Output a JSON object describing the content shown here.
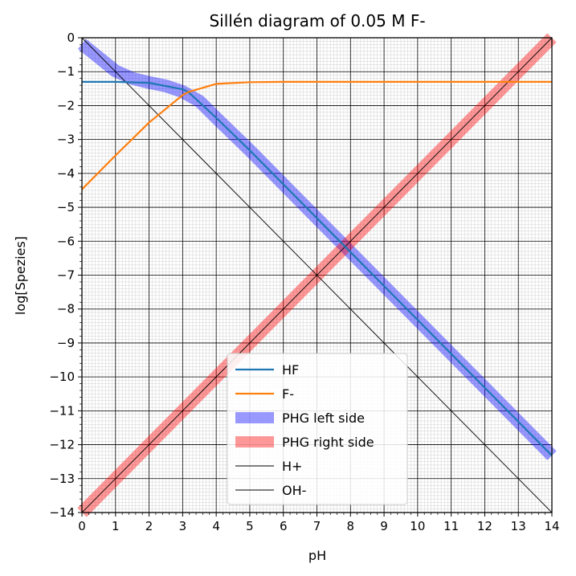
{
  "chart_data": {
    "type": "line",
    "title": "Sillén diagram of 0.05 M F-",
    "xlabel": "pH",
    "ylabel": "log[Spezies]",
    "xlim": [
      0,
      14
    ],
    "ylim": [
      -14,
      0
    ],
    "xticks": [
      "0",
      "1",
      "2",
      "3",
      "4",
      "5",
      "6",
      "7",
      "8",
      "9",
      "10",
      "11",
      "12",
      "13",
      "14"
    ],
    "yticks": [
      "0",
      "−1",
      "−2",
      "−3",
      "−4",
      "−5",
      "−6",
      "−7",
      "−8",
      "−9",
      "−10",
      "−11",
      "−12",
      "−13",
      "−14"
    ],
    "grid": "major and minor",
    "legend_position": "lower-center",
    "concentration_log": -1.301,
    "pKa": 3.17,
    "series": [
      {
        "name": "HF",
        "color": "#1f77b4",
        "style": "solid",
        "x": [
          0,
          1,
          2,
          3,
          3.17,
          4,
          5,
          6,
          7,
          8,
          9,
          10,
          11,
          12,
          13,
          14
        ],
        "y": [
          -1.3,
          -1.3,
          -1.33,
          -1.52,
          -1.6,
          -2.36,
          -3.32,
          -4.32,
          -5.32,
          -6.32,
          -7.32,
          -8.32,
          -9.32,
          -10.32,
          -11.32,
          -12.32
        ]
      },
      {
        "name": "F-",
        "color": "#ff7f0e",
        "style": "solid",
        "x": [
          0,
          1,
          2,
          3,
          3.17,
          4,
          5,
          6,
          7,
          8,
          9,
          10,
          11,
          12,
          13,
          14
        ],
        "y": [
          -4.47,
          -3.47,
          -2.5,
          -1.69,
          -1.6,
          -1.36,
          -1.31,
          -1.3,
          -1.3,
          -1.3,
          -1.3,
          -1.3,
          -1.3,
          -1.3,
          -1.3,
          -1.3
        ]
      },
      {
        "name": "PHG left side",
        "color": "#0000ff",
        "style": "band",
        "x": [
          0,
          0.5,
          1,
          1.5,
          2,
          2.5,
          3,
          3.5,
          4,
          5,
          6,
          7,
          8,
          9,
          10,
          11,
          12,
          13,
          14
        ],
        "y": [
          -0.18,
          -0.58,
          -0.98,
          -1.2,
          -1.32,
          -1.42,
          -1.59,
          -1.87,
          -2.36,
          -3.32,
          -4.32,
          -5.32,
          -6.32,
          -7.32,
          -8.32,
          -9.32,
          -10.32,
          -11.32,
          -12.32
        ]
      },
      {
        "name": "PHG right side",
        "color": "#ff0000",
        "style": "band",
        "x": [
          0,
          14
        ],
        "y": [
          -14,
          0
        ]
      },
      {
        "name": "H+",
        "color": "#000000",
        "style": "thin",
        "x": [
          0,
          14
        ],
        "y": [
          0,
          -14
        ]
      },
      {
        "name": "OH-",
        "color": "#000000",
        "style": "thin",
        "x": [
          0,
          14
        ],
        "y": [
          -14,
          0
        ]
      }
    ]
  }
}
